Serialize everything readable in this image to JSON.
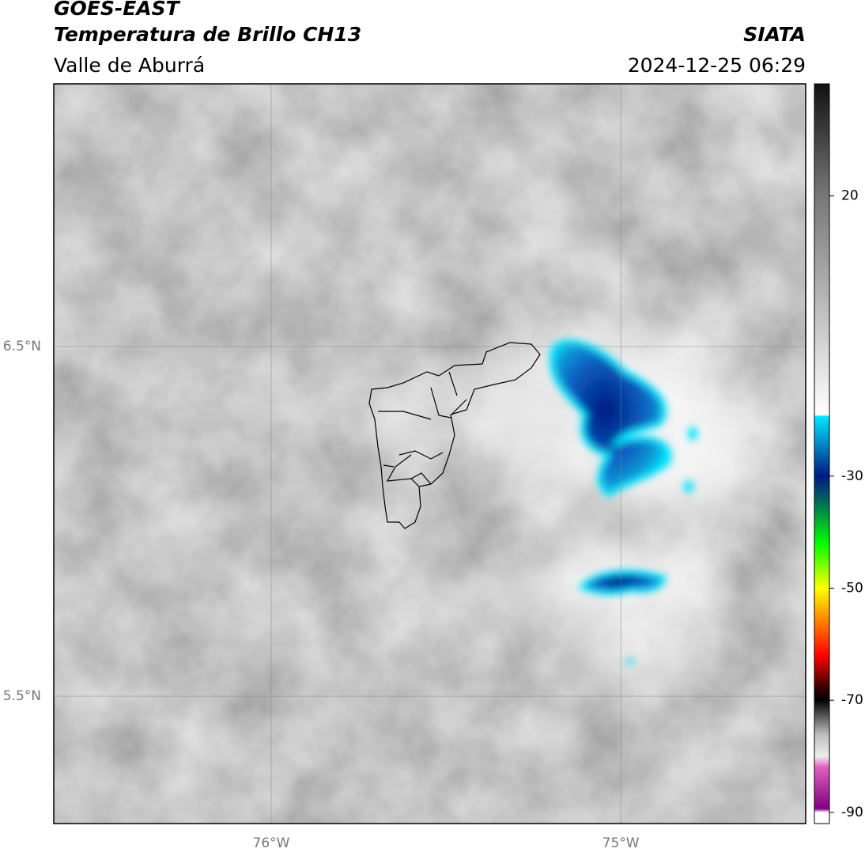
{
  "header": {
    "title": "GOES-EAST",
    "subtitle": "Temperatura de Brillo CH13",
    "region": "Valle de Aburrá",
    "source": "SIATA",
    "datetime": "2024-12-25 06:29"
  },
  "map": {
    "latlim": [
      5.136,
      7.251
    ],
    "lonlim": [
      -76.622,
      -74.471
    ],
    "lat_ticks": [
      {
        "value": 6.5,
        "label": "6.5°N"
      },
      {
        "value": 5.5,
        "label": "5.5°N"
      }
    ],
    "lon_ticks": [
      {
        "value": -76,
        "label": "76°W"
      },
      {
        "value": -75,
        "label": "75°W"
      }
    ]
  },
  "colorbar": {
    "range": [
      -92,
      40
    ],
    "ticks": [
      20,
      -30,
      -50,
      -70,
      -90
    ]
  }
}
